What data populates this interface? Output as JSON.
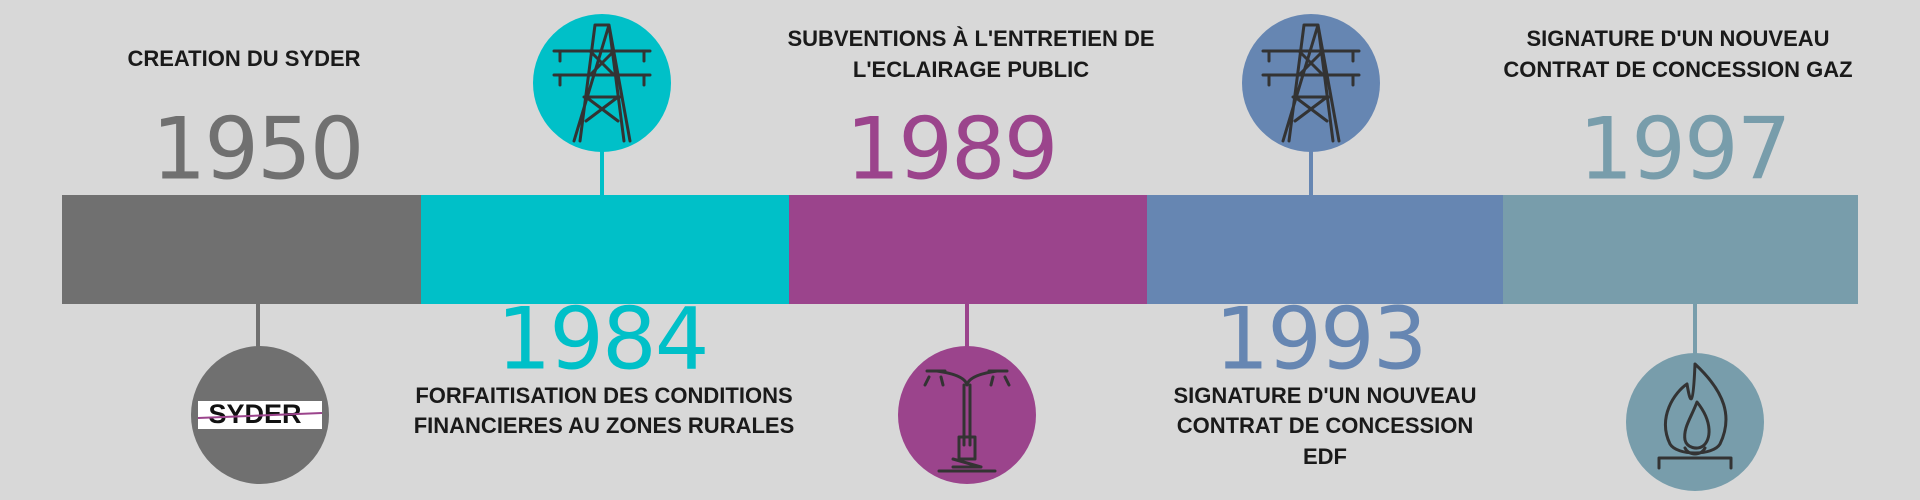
{
  "events": [
    {
      "year": "1950",
      "label": [
        "CREATION DU SYDER"
      ]
    },
    {
      "year": "1984",
      "label": [
        "FORFAITISATION DES CONDITIONS",
        "FINANCIERES AU ZONES RURALES"
      ]
    },
    {
      "year": "1989",
      "label": [
        "SUBVENTIONS À L'ENTRETIEN DE",
        "L'ECLAIRAGE PUBLIC"
      ]
    },
    {
      "year": "1993",
      "label": [
        "SIGNATURE D'UN NOUVEAU",
        "CONTRAT DE CONCESSION",
        "EDF"
      ]
    },
    {
      "year": "1997",
      "label": [
        "SIGNATURE D'UN NOUVEAU",
        "CONTRAT DE CONCESSION GAZ"
      ]
    }
  ],
  "logo": "SYDER"
}
